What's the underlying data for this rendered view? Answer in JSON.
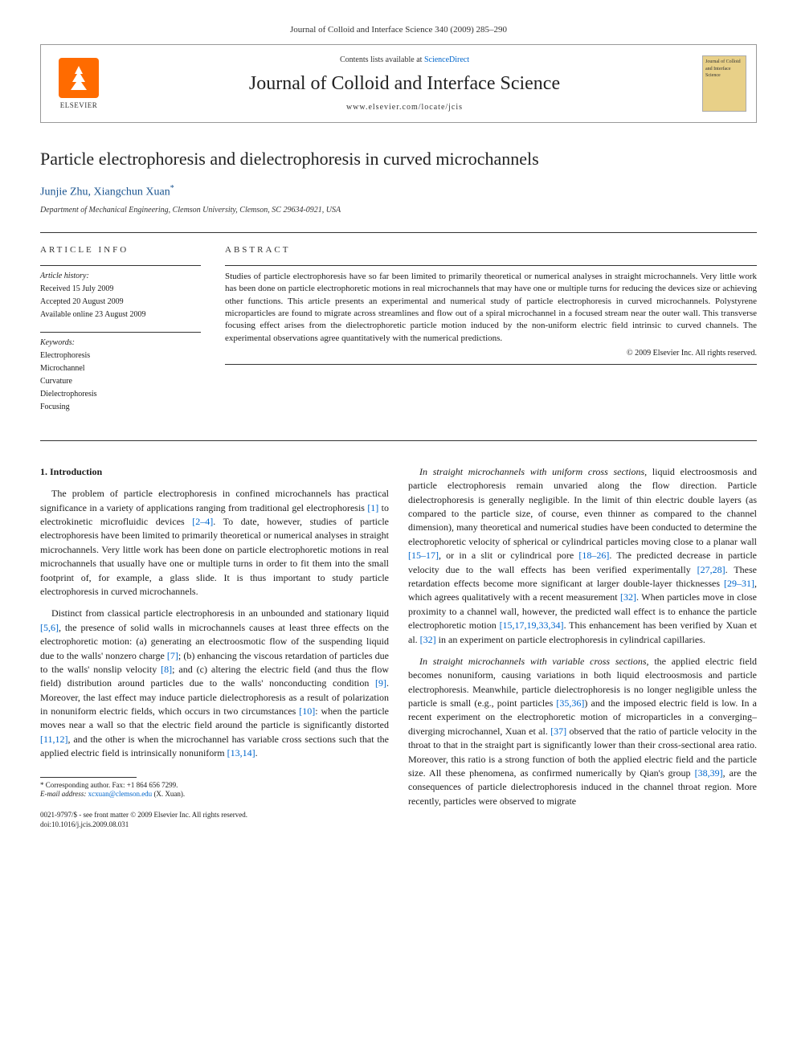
{
  "citation": "Journal of Colloid and Interface Science 340 (2009) 285–290",
  "header": {
    "publisher": "ELSEVIER",
    "contents_prefix": "Contents lists available at ",
    "contents_link": "ScienceDirect",
    "journal_title": "Journal of Colloid and Interface Science",
    "journal_url": "www.elsevier.com/locate/jcis",
    "cover_text": "Journal of Colloid and Interface Science"
  },
  "article": {
    "title": "Particle electrophoresis and dielectrophoresis in curved microchannels",
    "authors": "Junjie Zhu, Xiangchun Xuan",
    "author_marker": "*",
    "affiliation": "Department of Mechanical Engineering, Clemson University, Clemson, SC 29634-0921, USA"
  },
  "info": {
    "heading": "ARTICLE INFO",
    "history_label": "Article history:",
    "received": "Received 15 July 2009",
    "accepted": "Accepted 20 August 2009",
    "online": "Available online 23 August 2009",
    "keywords_label": "Keywords:",
    "keywords": [
      "Electrophoresis",
      "Microchannel",
      "Curvature",
      "Dielectrophoresis",
      "Focusing"
    ]
  },
  "abstract": {
    "heading": "ABSTRACT",
    "text": "Studies of particle electrophoresis have so far been limited to primarily theoretical or numerical analyses in straight microchannels. Very little work has been done on particle electrophoretic motions in real microchannels that may have one or multiple turns for reducing the devices size or achieving other functions. This article presents an experimental and numerical study of particle electrophoresis in curved microchannels. Polystyrene microparticles are found to migrate across streamlines and flow out of a spiral microchannel in a focused stream near the outer wall. This transverse focusing effect arises from the dielectrophoretic particle motion induced by the non-uniform electric field intrinsic to curved channels. The experimental observations agree quantitatively with the numerical predictions.",
    "copyright": "© 2009 Elsevier Inc. All rights reserved."
  },
  "section1_heading": "1. Introduction",
  "para1": "The problem of particle electrophoresis in confined microchannels has practical significance in a variety of applications ranging from traditional gel electrophoresis [1] to electrokinetic microfluidic devices [2–4]. To date, however, studies of particle electrophoresis have been limited to primarily theoretical or numerical analyses in straight microchannels. Very little work has been done on particle electrophoretic motions in real microchannels that usually have one or multiple turns in order to fit them into the small footprint of, for example, a glass slide. It is thus important to study particle electrophoresis in curved microchannels.",
  "para2": "Distinct from classical particle electrophoresis in an unbounded and stationary liquid [5,6], the presence of solid walls in microchannels causes at least three effects on the electrophoretic motion: (a) generating an electroosmotic flow of the suspending liquid due to the walls' nonzero charge [7]; (b) enhancing the viscous retardation of particles due to the walls' nonslip velocity [8]; and (c) altering the electric field (and thus the flow field) distribution around particles due to the walls' nonconducting condition [9]. Moreover, the last effect may induce particle dielectrophoresis as a result of polarization in nonuniform electric fields, which occurs in two circumstances [10]: when the particle moves near a wall so that the electric field around the particle is significantly distorted [11,12], and the other is when the microchannel has variable cross sections such that the applied electric field is intrinsically nonuniform [13,14].",
  "para3_lead": "In straight microchannels with uniform cross sections,",
  "para3": " liquid electroosmosis and particle electrophoresis remain unvaried along the flow direction. Particle dielectrophoresis is generally negligible. In the limit of thin electric double layers (as compared to the particle size, of course, even thinner as compared to the channel dimension), many theoretical and numerical studies have been conducted to determine the electrophoretic velocity of spherical or cylindrical particles moving close to a planar wall [15–17], or in a slit or cylindrical pore [18–26]. The predicted decrease in particle velocity due to the wall effects has been verified experimentally [27,28]. These retardation effects become more significant at larger double-layer thicknesses [29–31], which agrees qualitatively with a recent measurement [32]. When particles move in close proximity to a channel wall, however, the predicted wall effect is to enhance the particle electrophoretic motion [15,17,19,33,34]. This enhancement has been verified by Xuan et al. [32] in an experiment on particle electrophoresis in cylindrical capillaries.",
  "para4_lead": "In straight microchannels with variable cross sections,",
  "para4": " the applied electric field becomes nonuniform, causing variations in both liquid electroosmosis and particle electrophoresis. Meanwhile, particle dielectrophoresis is no longer negligible unless the particle is small (e.g., point particles [35,36]) and the imposed electric field is low. In a recent experiment on the electrophoretic motion of microparticles in a converging–diverging microchannel, Xuan et al. [37] observed that the ratio of particle velocity in the throat to that in the straight part is significantly lower than their cross-sectional area ratio. Moreover, this ratio is a strong function of both the applied electric field and the particle size. All these phenomena, as confirmed numerically by Qian's group [38,39], are the consequences of particle dielectrophoresis induced in the channel throat region. More recently, particles were observed to migrate",
  "footnote": {
    "corr": "* Corresponding author. Fax: +1 864 656 7299.",
    "email_label": "E-mail address:",
    "email": "xcxuan@clemson.edu",
    "email_suffix": "(X. Xuan)."
  },
  "bottom": {
    "line1": "0021-9797/$ - see front matter © 2009 Elsevier Inc. All rights reserved.",
    "line2": "doi:10.1016/j.jcis.2009.08.031"
  },
  "colors": {
    "link": "#0066cc",
    "author": "#1a5490",
    "elsevier_orange": "#ff6b00",
    "cover_bg": "#e8d088"
  }
}
